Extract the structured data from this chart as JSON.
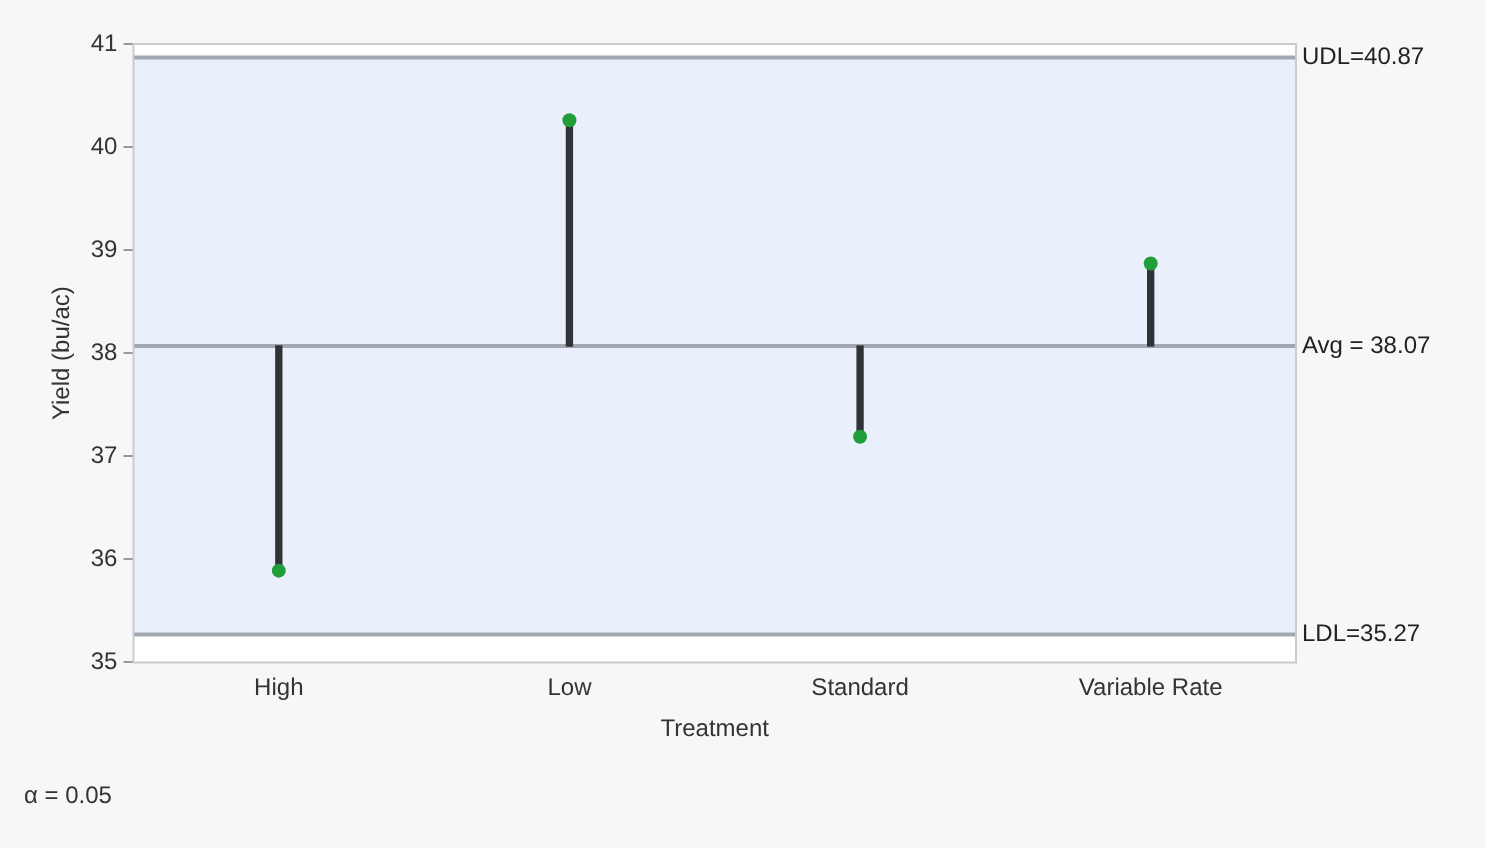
{
  "chart_data": {
    "type": "bar",
    "xlabel": "Treatment",
    "ylabel": "Yield (bu/ac)",
    "categories": [
      "High",
      "Low",
      "Standard",
      "Variable Rate"
    ],
    "series": [
      {
        "color": "#2f3337",
        "values": [
          -2.18,
          2.19,
          -0.88,
          0.8
        ],
        "base": [
          38.07,
          38.07,
          38.07,
          38.07
        ]
      },
      {
        "type": "scatter",
        "color": "#1f9e3a",
        "x": [
          "High",
          "Low",
          "Standard",
          "Variable Rate"
        ],
        "values": [
          35.89,
          40.26,
          37.19,
          38.87
        ]
      }
    ],
    "ylim": [
      35,
      41
    ],
    "yticks": [
      35,
      36,
      37,
      38,
      39,
      40,
      41
    ],
    "grid": false,
    "legend": false,
    "marker": "circle",
    "ref_lines": [
      {
        "axis": "y",
        "value": 40.87,
        "label": "UDL=40.87",
        "color": "#a3a8b0"
      },
      {
        "axis": "y",
        "value": 38.07,
        "label": "Avg = 38.07",
        "color": "#a3a8b0"
      },
      {
        "axis": "y",
        "value": 35.27,
        "label": "LDL=35.27",
        "color": "#a3a8b0"
      }
    ],
    "bands": [
      {
        "axis": "y",
        "from": 35.27,
        "to": 40.87,
        "color": "#e9effb"
      }
    ],
    "annotations": [
      "α = 0.05"
    ]
  }
}
